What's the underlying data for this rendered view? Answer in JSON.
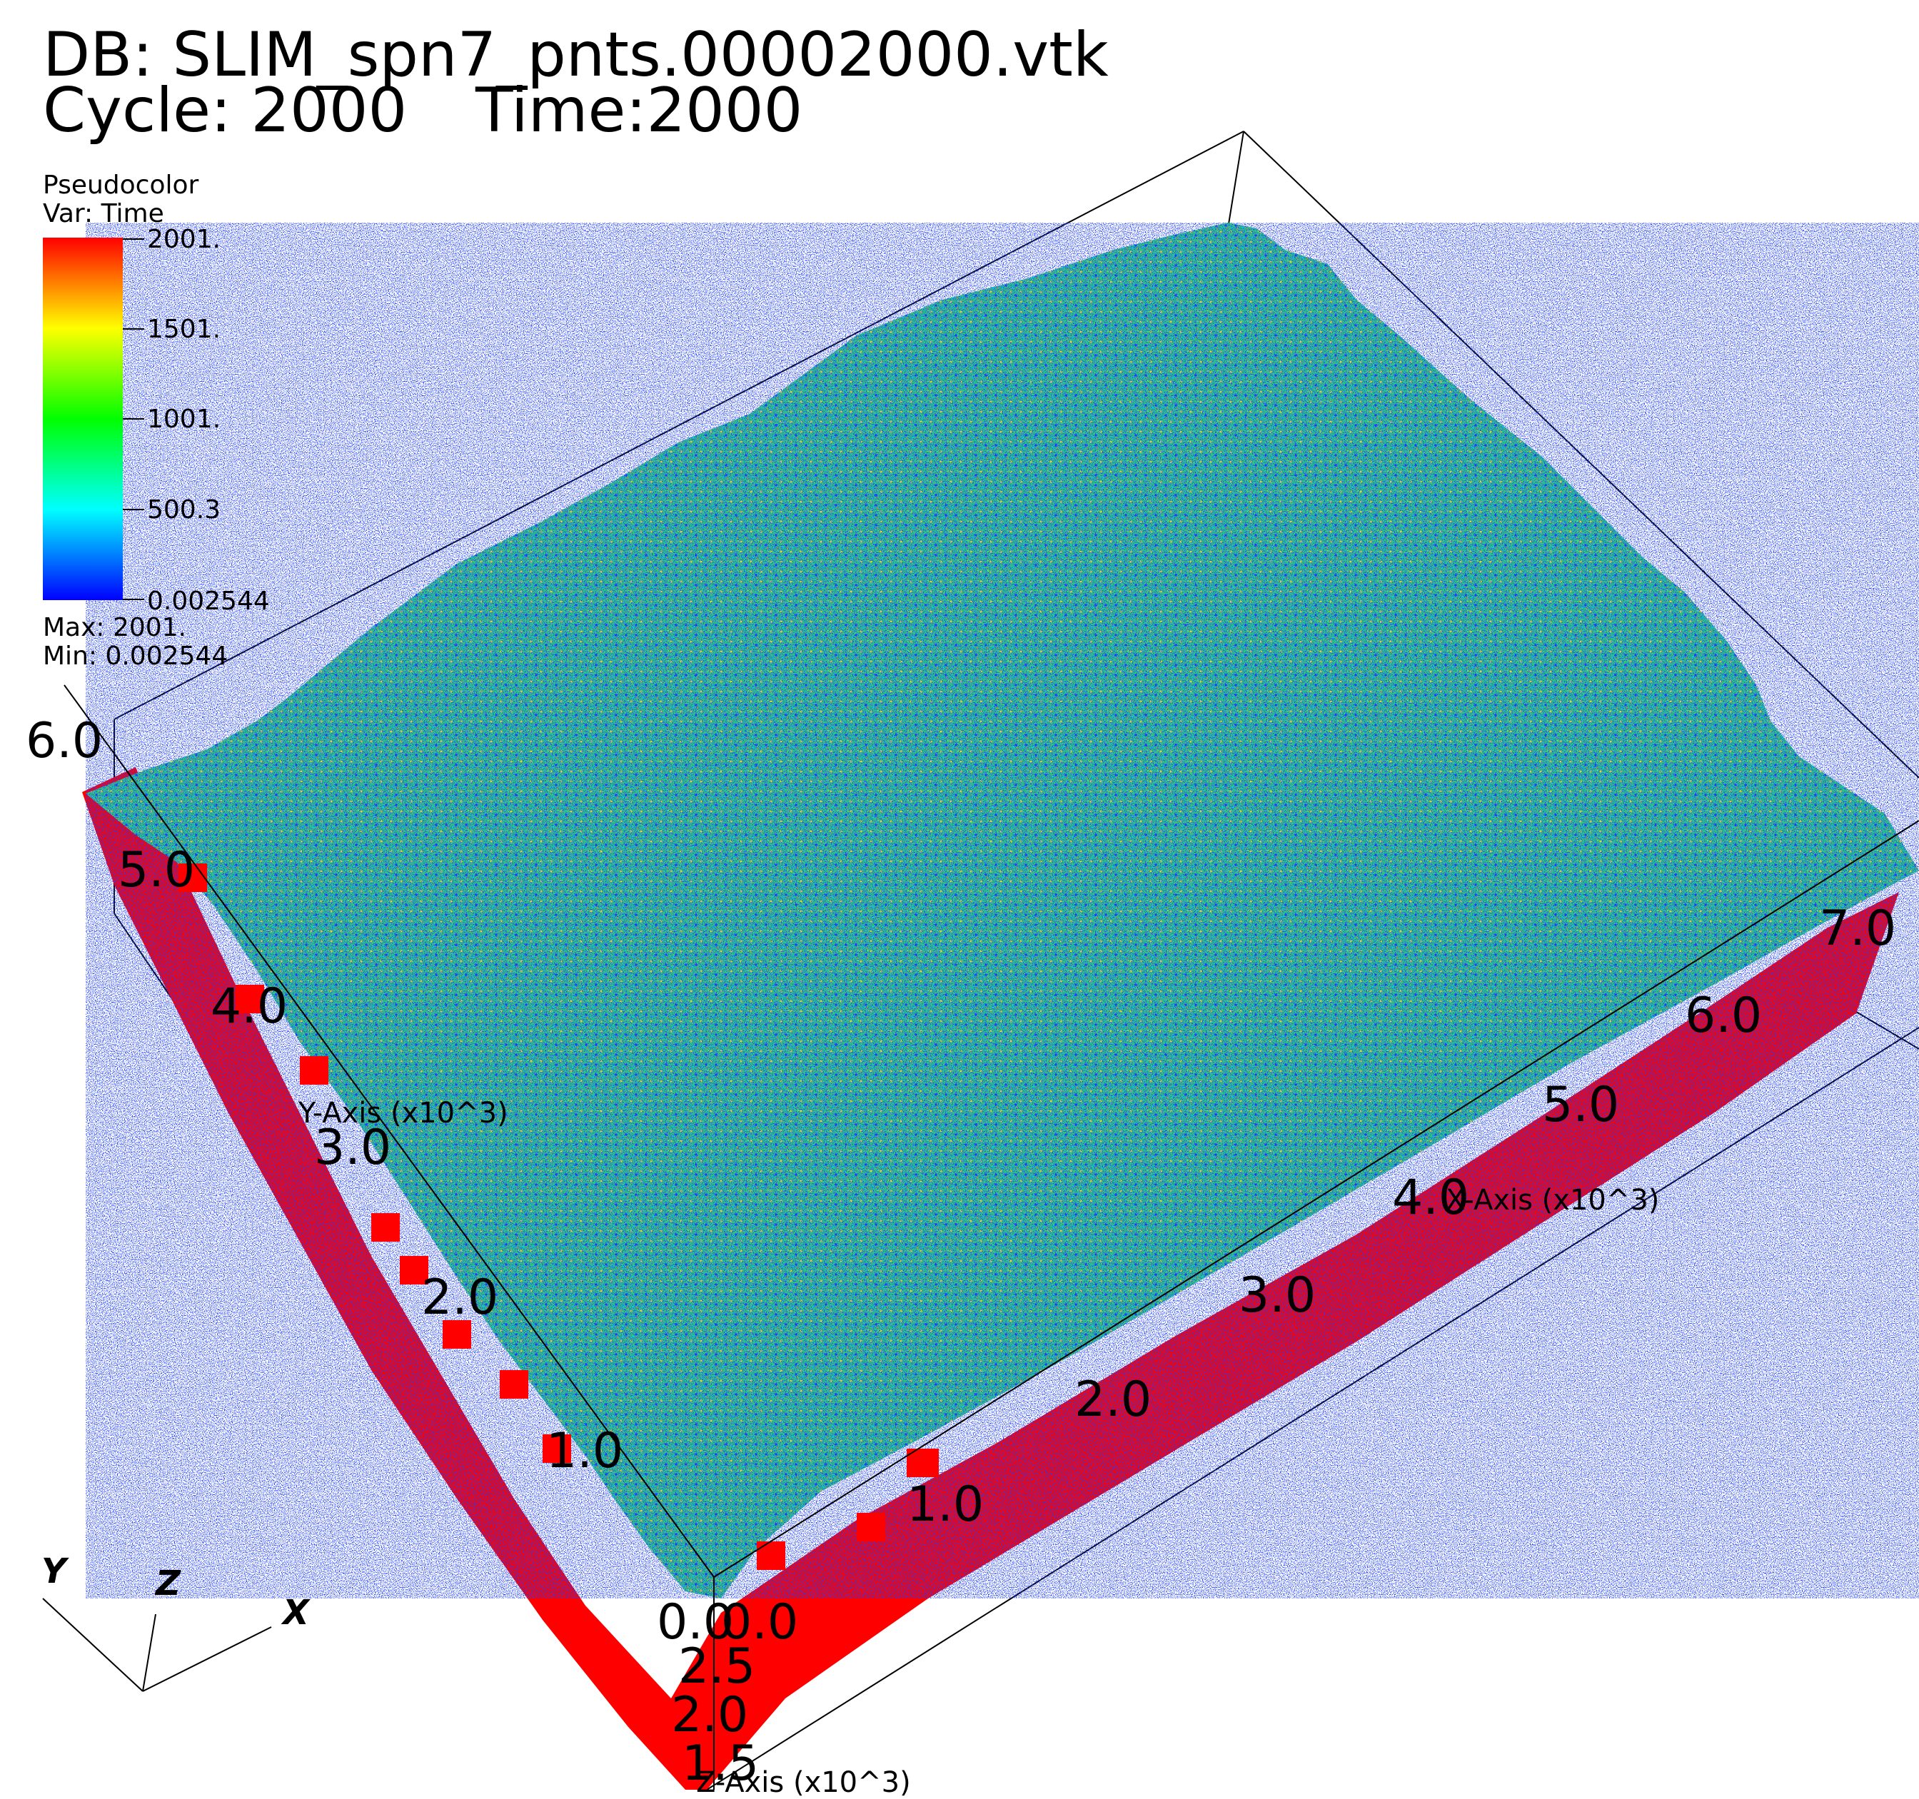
{
  "header": {
    "db_line": "DB: SLIM_spn7_pnts.00002000.vtk",
    "cycle_label": "Cycle: 2000",
    "time_label": "Time:2000"
  },
  "legend": {
    "plot_type": "Pseudocolor",
    "var_label": "Var: Time",
    "tick_labels": [
      "2001.",
      "1501.",
      "1001.",
      "500.3",
      "0.002544"
    ],
    "max_label": "Max:  2001.",
    "min_label": "Min:  0.002544",
    "colors": [
      "#ff0000",
      "#ffff00",
      "#00ff00",
      "#00ffff",
      "#0000ff"
    ]
  },
  "axes": {
    "x_title": "X-Axis (x10^3)",
    "y_title": "Y-Axis (x10^3)",
    "z_title": "Z-Axis (x10^3)",
    "x_ticks": [
      "0.0",
      "1.0",
      "2.0",
      "3.0",
      "4.0",
      "5.0",
      "6.0",
      "7.0"
    ],
    "y_ticks": [
      "0.0",
      "1.0",
      "2.0",
      "3.0",
      "4.0",
      "5.0",
      "6.0"
    ],
    "z_ticks": [
      "2.5",
      "2.0",
      "1.5"
    ]
  },
  "triad": {
    "x": "X",
    "y": "Y",
    "z": "Z"
  },
  "colors": {
    "surface_green": "#3cc864",
    "edge_red": "#ff0000",
    "box_line": "#000000"
  }
}
